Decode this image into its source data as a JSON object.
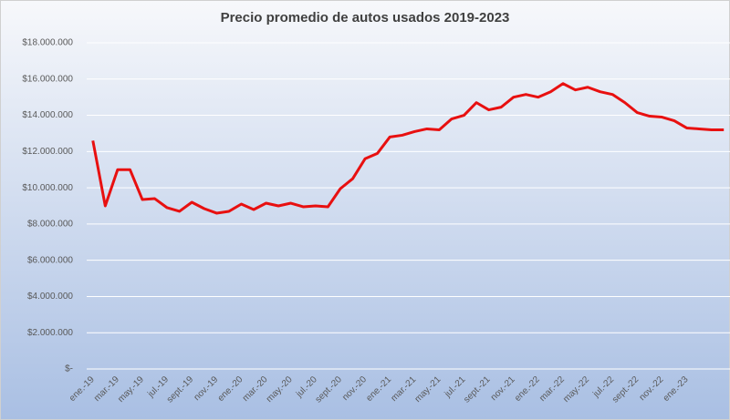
{
  "chart_data": {
    "type": "line",
    "title": "Precio promedio de autos usados 2019-2023",
    "categories": [
      "ene.-19",
      null,
      "mar.-19",
      null,
      "may.-19",
      null,
      "jul.-19",
      null,
      "sept.-19",
      null,
      "nov.-19",
      null,
      "ene.-20",
      null,
      "mar.-20",
      null,
      "may.-20",
      null,
      "jul.-20",
      null,
      "sept.-20",
      null,
      "nov.-20",
      null,
      "ene.-21",
      null,
      "mar.-21",
      null,
      "may.-21",
      null,
      "jul.-21",
      null,
      "sept.-21",
      null,
      "nov.-21",
      null,
      "ene.-22",
      null,
      "mar.-22",
      null,
      "may.-22",
      null,
      "jul.-22",
      null,
      "sept.-22",
      null,
      "nov.-22",
      null,
      "ene.-23",
      null,
      null,
      null
    ],
    "series": [
      {
        "name": "Precio promedio",
        "color": "#e81010",
        "values": [
          12600000,
          9000000,
          11000000,
          11000000,
          9350000,
          9400000,
          8900000,
          8700000,
          9200000,
          8850000,
          8600000,
          8700000,
          9100000,
          8800000,
          9150000,
          9000000,
          9150000,
          8950000,
          9000000,
          8950000,
          9950000,
          10500000,
          11600000,
          11900000,
          12800000,
          12900000,
          13100000,
          13250000,
          13200000,
          13800000,
          14000000,
          14700000,
          14300000,
          14450000,
          15000000,
          15150000,
          15000000,
          15300000,
          15750000,
          15400000,
          15550000,
          15300000,
          15150000,
          14700000,
          14150000,
          13950000,
          13900000,
          13700000,
          13300000,
          13250000,
          13200000,
          13200000
        ]
      }
    ],
    "ylim": [
      0,
      18000000
    ],
    "yticks": [
      {
        "value": 0,
        "label": "$-"
      },
      {
        "value": 2000000,
        "label": "$2.000.000"
      },
      {
        "value": 4000000,
        "label": "$4.000.000"
      },
      {
        "value": 6000000,
        "label": "$6.000.000"
      },
      {
        "value": 8000000,
        "label": "$8.000.000"
      },
      {
        "value": 10000000,
        "label": "$10.000.000"
      },
      {
        "value": 12000000,
        "label": "$12.000.000"
      },
      {
        "value": 14000000,
        "label": "$14.000.000"
      },
      {
        "value": 16000000,
        "label": "$16.000.000"
      },
      {
        "value": 18000000,
        "label": "$18.000.000"
      }
    ],
    "grid": true
  }
}
